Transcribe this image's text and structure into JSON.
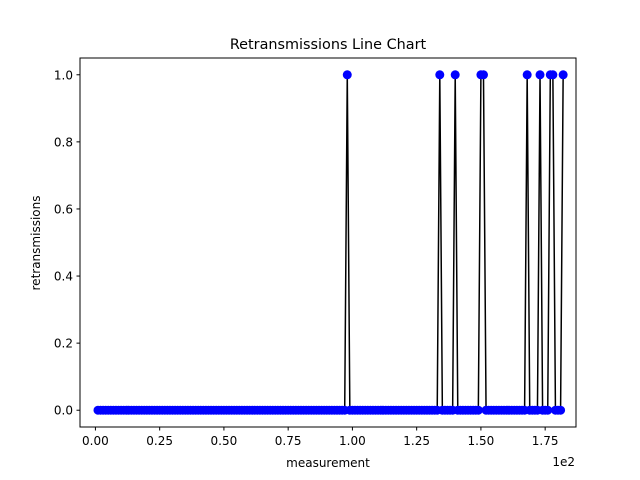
{
  "chart_data": {
    "type": "line",
    "title": "Retransmissions Line Chart",
    "xlabel": "measurement",
    "ylabel": "retransmissions",
    "x_offset_text": "1e2",
    "xlim": [
      -6,
      187
    ],
    "ylim": [
      -0.05,
      1.05
    ],
    "x_ticks": [
      0,
      25,
      50,
      75,
      100,
      125,
      150,
      175
    ],
    "x_tick_labels": [
      "0.00",
      "0.25",
      "0.50",
      "0.75",
      "1.00",
      "1.25",
      "1.50",
      "1.75"
    ],
    "y_ticks": [
      0.0,
      0.2,
      0.4,
      0.6,
      0.8,
      1.0
    ],
    "y_tick_labels": [
      "0.0",
      "0.2",
      "0.4",
      "0.6",
      "0.8",
      "1.0"
    ],
    "grid": false,
    "line_color": "#000000",
    "marker_color": "#0000ff",
    "x": [
      1,
      2,
      3,
      4,
      5,
      6,
      7,
      8,
      9,
      10,
      11,
      12,
      13,
      14,
      15,
      16,
      17,
      18,
      19,
      20,
      21,
      22,
      23,
      24,
      25,
      26,
      27,
      28,
      29,
      30,
      31,
      32,
      33,
      34,
      35,
      36,
      37,
      38,
      39,
      40,
      41,
      42,
      43,
      44,
      45,
      46,
      47,
      48,
      49,
      50,
      51,
      52,
      53,
      54,
      55,
      56,
      57,
      58,
      59,
      60,
      61,
      62,
      63,
      64,
      65,
      66,
      67,
      68,
      69,
      70,
      71,
      72,
      73,
      74,
      75,
      76,
      77,
      78,
      79,
      80,
      81,
      82,
      83,
      84,
      85,
      86,
      87,
      88,
      89,
      90,
      91,
      92,
      93,
      94,
      95,
      96,
      97,
      98,
      99,
      100,
      101,
      102,
      103,
      104,
      105,
      106,
      107,
      108,
      109,
      110,
      111,
      112,
      113,
      114,
      115,
      116,
      117,
      118,
      119,
      120,
      121,
      122,
      123,
      124,
      125,
      126,
      127,
      128,
      129,
      130,
      131,
      132,
      133,
      134,
      135,
      136,
      137,
      138,
      139,
      140,
      141,
      142,
      143,
      144,
      145,
      146,
      147,
      148,
      149,
      150,
      151,
      152,
      153,
      154,
      155,
      156,
      157,
      158,
      159,
      160,
      161,
      162,
      163,
      164,
      165,
      166,
      167,
      168,
      169,
      170,
      171,
      172,
      173,
      174,
      175,
      176,
      177,
      178,
      179,
      180,
      181,
      182
    ],
    "y": [
      0,
      0,
      0,
      0,
      0,
      0,
      0,
      0,
      0,
      0,
      0,
      0,
      0,
      0,
      0,
      0,
      0,
      0,
      0,
      0,
      0,
      0,
      0,
      0,
      0,
      0,
      0,
      0,
      0,
      0,
      0,
      0,
      0,
      0,
      0,
      0,
      0,
      0,
      0,
      0,
      0,
      0,
      0,
      0,
      0,
      0,
      0,
      0,
      0,
      0,
      0,
      0,
      0,
      0,
      0,
      0,
      0,
      0,
      0,
      0,
      0,
      0,
      0,
      0,
      0,
      0,
      0,
      0,
      0,
      0,
      0,
      0,
      0,
      0,
      0,
      0,
      0,
      0,
      0,
      0,
      0,
      0,
      0,
      0,
      0,
      0,
      0,
      0,
      0,
      0,
      0,
      0,
      0,
      0,
      0,
      0,
      0,
      1,
      0,
      0,
      0,
      0,
      0,
      0,
      0,
      0,
      0,
      0,
      0,
      0,
      0,
      0,
      0,
      0,
      0,
      0,
      0,
      0,
      0,
      0,
      0,
      0,
      0,
      0,
      0,
      0,
      0,
      0,
      0,
      0,
      0,
      0,
      0,
      1,
      0,
      0,
      0,
      0,
      0,
      1,
      0,
      0,
      0,
      0,
      0,
      0,
      0,
      0,
      0,
      1,
      1,
      0,
      0,
      0,
      0,
      0,
      0,
      0,
      0,
      0,
      0,
      0,
      0,
      0,
      0,
      0,
      0,
      1,
      0,
      0,
      0,
      0,
      1,
      0,
      0,
      0,
      1,
      1,
      0,
      0,
      0,
      1
    ]
  }
}
